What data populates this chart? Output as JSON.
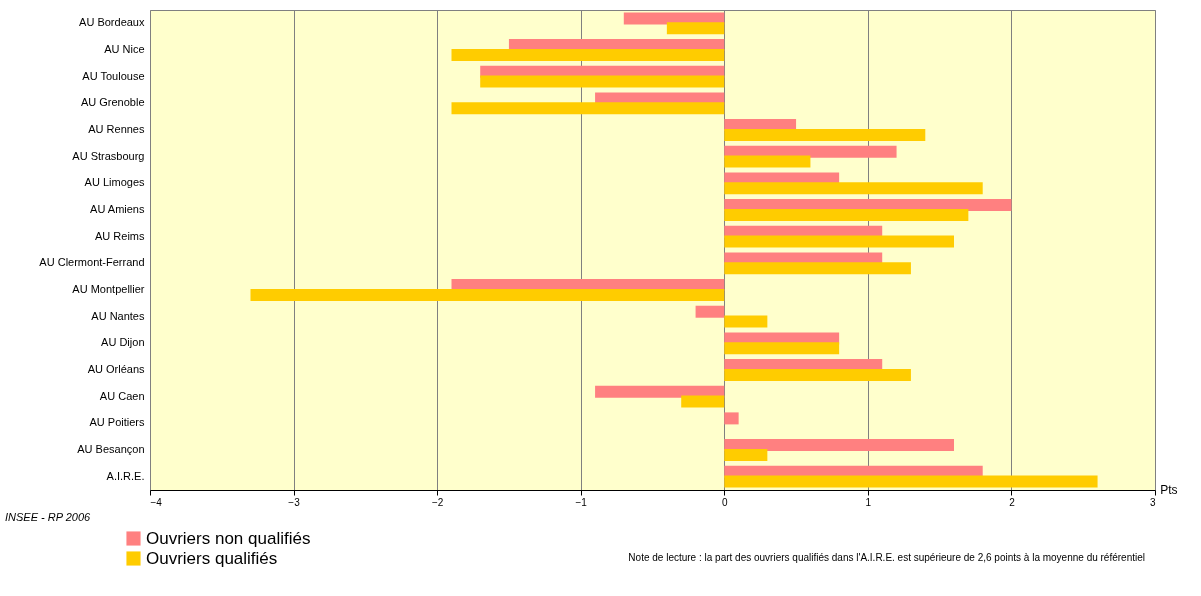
{
  "chart_data": {
    "type": "bar",
    "orientation": "horizontal",
    "xlabel": "Pts",
    "categories": [
      "AU Bordeaux",
      "AU Nice",
      "AU Toulouse",
      "AU Grenoble",
      "AU Rennes",
      "AU Strasbourg",
      "AU Limoges",
      "AU Amiens",
      "AU Reims",
      "AU Clermont-Ferrand",
      "AU Montpellier",
      "AU Nantes",
      "AU Dijon",
      "AU Orléans",
      "AU Caen",
      "AU Poitiers",
      "AU Besançon",
      "A.I.R.E."
    ],
    "series": [
      {
        "name": "Ouvriers non qualifiés",
        "color": "#ff8080",
        "values": [
          -0.7,
          -1.5,
          -1.7,
          -0.9,
          0.5,
          1.2,
          0.8,
          2.0,
          1.1,
          1.1,
          -1.9,
          -0.2,
          0.8,
          1.1,
          -0.9,
          0.1,
          1.6,
          1.8
        ]
      },
      {
        "name": "Ouvriers qualifiés",
        "color": "#ffcc00",
        "values": [
          -0.4,
          -1.9,
          -1.7,
          -1.9,
          1.4,
          0.6,
          1.8,
          1.7,
          1.6,
          1.3,
          -3.3,
          0.3,
          0.8,
          1.3,
          -0.3,
          0,
          0.3,
          2.6
        ]
      }
    ],
    "xlim": [
      -4,
      3
    ],
    "xticks": [
      -4,
      -3,
      -2,
      -1,
      0,
      1,
      2,
      3
    ],
    "grid": "x",
    "legend": "bottom left",
    "annotations": [
      "INSEE - RP 2006",
      "Note de lecture : la part des ouvriers qualifiés dans l'A.I.R.E. est supérieure de 2,6 points à la moyenne du référentiel"
    ]
  }
}
